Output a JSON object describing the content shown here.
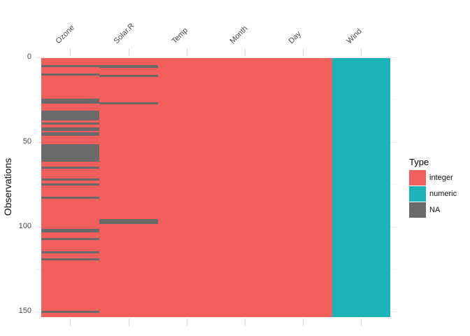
{
  "y_axis": {
    "title": "Observations",
    "tick_labels": [
      "0",
      "50",
      "100",
      "150"
    ],
    "tick_values": [
      0,
      50,
      100,
      150
    ],
    "minor_gridline_values": [
      25,
      75,
      125
    ]
  },
  "x_axis": {
    "tick_labels": [
      "Ozone",
      "Solar.R",
      "Temp",
      "Month",
      "Day",
      "Wind"
    ]
  },
  "legend": {
    "title": "Type",
    "items": [
      {
        "label": "integer",
        "color": "#f25f5c"
      },
      {
        "label": "numeric",
        "color": "#1ab3b8"
      },
      {
        "label": "NA",
        "color": "#6a6a6a"
      }
    ]
  },
  "chart_data": {
    "type": "heatmap",
    "title": "",
    "xlabel": "",
    "ylabel": "Observations",
    "columns": [
      "Ozone",
      "Solar.R",
      "Temp",
      "Month",
      "Day",
      "Wind"
    ],
    "column_types": {
      "Ozone": "integer",
      "Solar.R": "integer",
      "Temp": "integer",
      "Month": "integer",
      "Day": "integer",
      "Wind": "numeric"
    },
    "n_observations": 153,
    "y_ticks": [
      0,
      50,
      100,
      150
    ],
    "ylim": [
      0,
      153
    ],
    "grid": "minimal, visible only at panel edge gaps",
    "legend_position": "right",
    "na_rows": {
      "Ozone": [
        5,
        10,
        25,
        26,
        27,
        32,
        33,
        34,
        35,
        36,
        37,
        39,
        42,
        43,
        45,
        46,
        52,
        53,
        54,
        55,
        56,
        57,
        58,
        59,
        60,
        61,
        65,
        72,
        75,
        83,
        102,
        103,
        107,
        115,
        119,
        150
      ],
      "Solar.R": [
        5,
        6,
        11,
        27,
        96,
        97,
        98
      ]
    },
    "type_colors": {
      "integer": "#f25f5c",
      "numeric": "#1ab3b8",
      "NA": "#6a6a6a"
    }
  }
}
